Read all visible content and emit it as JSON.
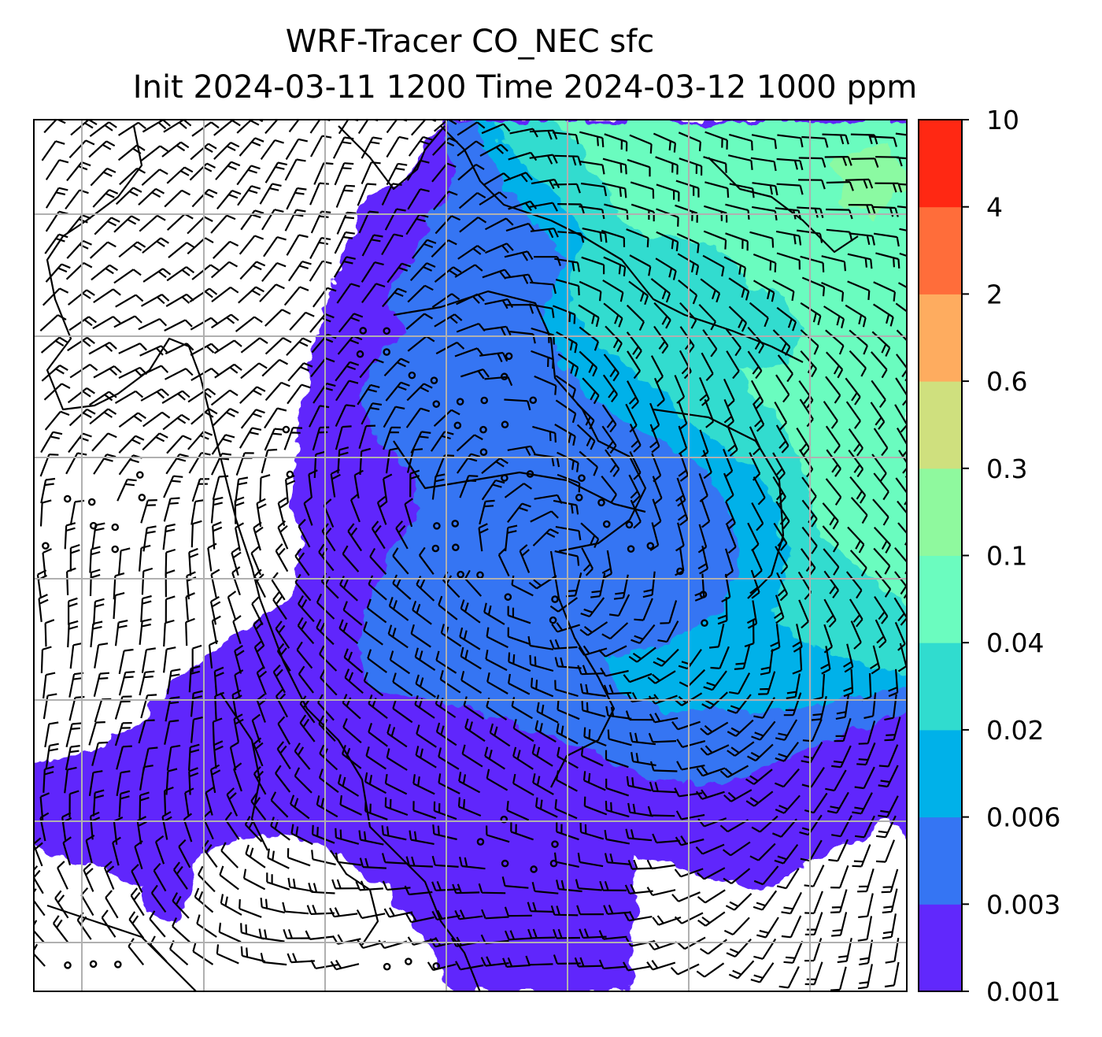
{
  "title": {
    "line1": "WRF-Tracer CO_NEC sfc",
    "line2": "Init 2024-03-11 1200 Time 2024-03-12 1000 ppm"
  },
  "colorbar": {
    "levels": [
      "0.001",
      "0.003",
      "0.006",
      "0.02",
      "0.04",
      "0.1",
      "0.3",
      "0.6",
      "2",
      "4",
      "10"
    ],
    "colors": [
      "#6128fc",
      "#3575f3",
      "#00b1e9",
      "#30dccf",
      "#6bfcbf",
      "#8ff99e",
      "#cfe07e",
      "#feac5f",
      "#ff6d3a",
      "#ff2813"
    ]
  },
  "map": {
    "land_color": "#ffffff",
    "coastline_color": "#000000",
    "gridline_color": "#b0b0b0",
    "barb_color": "#000000"
  }
}
